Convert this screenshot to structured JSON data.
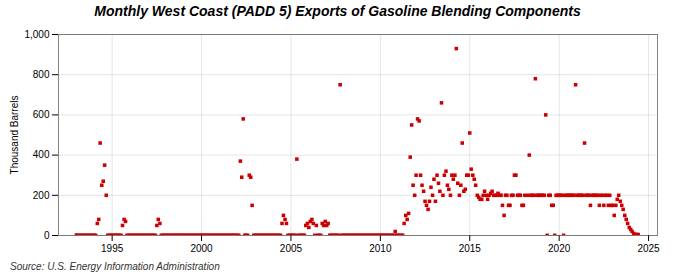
{
  "chart_data": {
    "type": "scatter",
    "title": "Monthly West Coast (PADD 5) Exports of Gasoline Blending Components",
    "ylabel": "Thousand Barrels",
    "source": "Source: U.S. Energy Information Administration",
    "color": "#CC0000",
    "marker": "square",
    "grid": true,
    "xlim": [
      1992.0,
      2025.5
    ],
    "ylim": [
      0,
      1000
    ],
    "xticks": [
      1995,
      2000,
      2005,
      2010,
      2015,
      2020,
      2025
    ],
    "yticks": [
      0,
      200,
      400,
      600,
      800,
      {
        "value": 1000,
        "label": "1,000"
      }
    ],
    "x": [
      1993.0,
      1993.08,
      1993.17,
      1993.25,
      1993.33,
      1993.42,
      1993.5,
      1993.58,
      1993.67,
      1993.75,
      1993.83,
      1993.92,
      1994.0,
      1994.08,
      1994.17,
      1994.25,
      1994.33,
      1994.42,
      1994.5,
      1994.58,
      1994.67,
      1994.75,
      1994.83,
      1994.92,
      1995.0,
      1995.08,
      1995.17,
      1995.25,
      1995.33,
      1995.42,
      1995.5,
      1995.58,
      1995.67,
      1995.75,
      1995.83,
      1995.92,
      1996.0,
      1996.08,
      1996.17,
      1996.25,
      1996.33,
      1996.42,
      1996.5,
      1996.58,
      1996.67,
      1996.75,
      1996.83,
      1996.92,
      1997.0,
      1997.08,
      1997.17,
      1997.25,
      1997.33,
      1997.42,
      1997.5,
      1997.58,
      1997.67,
      1997.75,
      1997.83,
      1997.92,
      1998.0,
      1998.08,
      1998.17,
      1998.25,
      1998.33,
      1998.42,
      1998.5,
      1998.58,
      1998.67,
      1998.75,
      1998.83,
      1998.92,
      1999.0,
      1999.08,
      1999.17,
      1999.25,
      1999.33,
      1999.42,
      1999.5,
      1999.58,
      1999.67,
      1999.75,
      1999.83,
      1999.92,
      2000.0,
      2000.08,
      2000.17,
      2000.25,
      2000.33,
      2000.42,
      2000.5,
      2000.58,
      2000.67,
      2000.75,
      2000.83,
      2000.92,
      2001.0,
      2001.08,
      2001.17,
      2001.25,
      2001.33,
      2001.42,
      2001.5,
      2001.58,
      2001.67,
      2001.75,
      2001.83,
      2001.92,
      2002.0,
      2002.08,
      2002.17,
      2002.25,
      2002.33,
      2002.42,
      2002.5,
      2002.58,
      2002.67,
      2002.75,
      2002.83,
      2002.92,
      2003.0,
      2003.08,
      2003.17,
      2003.25,
      2003.33,
      2003.42,
      2003.5,
      2003.58,
      2003.67,
      2003.75,
      2003.83,
      2003.92,
      2004.0,
      2004.08,
      2004.17,
      2004.25,
      2004.33,
      2004.42,
      2004.5,
      2004.58,
      2004.67,
      2004.75,
      2004.83,
      2004.92,
      2005.0,
      2005.08,
      2005.17,
      2005.25,
      2005.33,
      2005.42,
      2005.5,
      2005.58,
      2005.67,
      2005.75,
      2005.83,
      2005.92,
      2006.0,
      2006.08,
      2006.17,
      2006.25,
      2006.33,
      2006.42,
      2006.5,
      2006.58,
      2006.67,
      2006.75,
      2006.83,
      2006.92,
      2007.0,
      2007.08,
      2007.17,
      2007.25,
      2007.33,
      2007.42,
      2007.5,
      2007.58,
      2007.67,
      2007.75,
      2007.83,
      2007.92,
      2008.0,
      2008.08,
      2008.17,
      2008.25,
      2008.33,
      2008.42,
      2008.5,
      2008.58,
      2008.67,
      2008.75,
      2008.83,
      2008.92,
      2009.0,
      2009.08,
      2009.17,
      2009.25,
      2009.33,
      2009.42,
      2009.5,
      2009.58,
      2009.67,
      2009.75,
      2009.83,
      2009.92,
      2010.0,
      2010.08,
      2010.17,
      2010.25,
      2010.33,
      2010.42,
      2010.5,
      2010.58,
      2010.67,
      2010.75,
      2010.83,
      2010.92,
      2011.0,
      2011.08,
      2011.17,
      2011.25,
      2011.33,
      2011.42,
      2011.5,
      2011.58,
      2011.67,
      2011.75,
      2011.83,
      2011.92,
      2012.0,
      2012.08,
      2012.17,
      2012.25,
      2012.33,
      2012.42,
      2012.5,
      2012.58,
      2012.67,
      2012.75,
      2012.83,
      2012.92,
      2013.0,
      2013.08,
      2013.17,
      2013.25,
      2013.33,
      2013.42,
      2013.5,
      2013.58,
      2013.67,
      2013.75,
      2013.83,
      2013.92,
      2014.0,
      2014.08,
      2014.17,
      2014.25,
      2014.33,
      2014.42,
      2014.5,
      2014.58,
      2014.67,
      2014.75,
      2014.83,
      2014.92,
      2015.0,
      2015.08,
      2015.17,
      2015.25,
      2015.33,
      2015.42,
      2015.5,
      2015.58,
      2015.67,
      2015.75,
      2015.83,
      2015.92,
      2016.0,
      2016.08,
      2016.17,
      2016.25,
      2016.33,
      2016.42,
      2016.5,
      2016.58,
      2016.67,
      2016.75,
      2016.83,
      2016.92,
      2017.0,
      2017.08,
      2017.17,
      2017.25,
      2017.33,
      2017.42,
      2017.5,
      2017.58,
      2017.67,
      2017.75,
      2017.83,
      2017.92,
      2018.0,
      2018.08,
      2018.25,
      2018.33,
      2018.42,
      2018.5,
      2018.58,
      2018.67,
      2018.75,
      2018.83,
      2018.92,
      2019.0,
      2019.08,
      2019.17,
      2019.25,
      2019.33,
      2019.42,
      2019.5,
      2019.58,
      2019.67,
      2019.75,
      2019.83,
      2019.92,
      2020.0,
      2020.08,
      2020.17,
      2020.25,
      2020.33,
      2020.42,
      2020.5,
      2020.58,
      2020.67,
      2020.75,
      2020.83,
      2020.92,
      2021.0,
      2021.08,
      2021.17,
      2021.25,
      2021.33,
      2021.42,
      2021.5,
      2021.58,
      2021.67,
      2021.75,
      2021.83,
      2021.92,
      2022.0,
      2022.08,
      2022.17,
      2022.25,
      2022.33,
      2022.42,
      2022.5,
      2022.58,
      2022.67,
      2022.75,
      2022.83,
      2022.92,
      2023.0,
      2023.08,
      2023.17,
      2023.25,
      2023.33,
      2023.42,
      2023.5,
      2023.58,
      2023.67,
      2023.75,
      2023.83,
      2023.92,
      2024.0,
      2024.08,
      2024.17,
      2024.25,
      2024.33,
      2024.42
    ],
    "values": [
      2,
      1,
      1,
      1,
      1,
      1,
      1,
      1,
      1,
      1,
      1,
      1,
      1,
      1,
      60,
      80,
      460,
      250,
      270,
      350,
      200,
      1,
      1,
      1,
      1,
      1,
      1,
      1,
      1,
      1,
      1,
      50,
      80,
      70,
      1,
      1,
      1,
      1,
      1,
      1,
      1,
      1,
      1,
      1,
      1,
      1,
      1,
      1,
      1,
      1,
      1,
      1,
      1,
      1,
      50,
      80,
      60,
      1,
      1,
      1,
      1,
      1,
      1,
      1,
      1,
      1,
      1,
      1,
      1,
      1,
      1,
      1,
      1,
      1,
      1,
      1,
      1,
      1,
      1,
      1,
      1,
      1,
      1,
      1,
      1,
      1,
      1,
      1,
      1,
      1,
      1,
      1,
      1,
      1,
      1,
      1,
      1,
      1,
      1,
      1,
      1,
      1,
      1,
      1,
      1,
      1,
      1,
      1,
      1,
      1,
      370,
      290,
      580,
      1,
      1,
      1,
      300,
      290,
      150,
      1,
      1,
      1,
      1,
      1,
      1,
      1,
      1,
      1,
      1,
      1,
      1,
      1,
      1,
      1,
      1,
      1,
      1,
      1,
      60,
      100,
      80,
      60,
      1,
      1,
      1,
      1,
      1,
      1,
      380,
      1,
      1,
      1,
      1,
      1,
      50,
      60,
      40,
      70,
      80,
      60,
      1,
      50,
      1,
      1,
      1,
      60,
      50,
      70,
      50,
      60,
      1,
      1,
      1,
      1,
      1,
      1,
      1,
      750,
      1,
      1,
      1,
      1,
      1,
      1,
      1,
      1,
      1,
      1,
      1,
      1,
      1,
      1,
      1,
      1,
      1,
      1,
      1,
      1,
      1,
      1,
      1,
      1,
      1,
      1,
      1,
      1,
      1,
      1,
      1,
      1,
      1,
      1,
      1,
      1,
      20,
      1,
      1,
      1,
      1,
      1,
      60,
      100,
      80,
      110,
      390,
      550,
      250,
      200,
      300,
      580,
      570,
      300,
      250,
      220,
      170,
      150,
      130,
      170,
      240,
      200,
      280,
      170,
      300,
      260,
      220,
      660,
      200,
      300,
      320,
      250,
      230,
      200,
      300,
      280,
      300,
      930,
      260,
      200,
      250,
      460,
      220,
      230,
      300,
      300,
      510,
      330,
      300,
      280,
      250,
      200,
      190,
      180,
      180,
      200,
      220,
      200,
      180,
      200,
      210,
      220,
      200,
      200,
      200,
      210,
      200,
      200,
      150,
      100,
      200,
      200,
      150,
      150,
      200,
      200,
      300,
      300,
      200,
      200,
      200,
      150,
      150,
      200,
      200,
      400,
      200,
      200,
      200,
      780,
      200,
      200,
      200,
      200,
      200,
      200,
      600,
      1,
      200,
      200,
      150,
      150,
      1,
      200,
      200,
      200,
      200,
      200,
      1,
      200,
      200,
      200,
      200,
      200,
      200,
      200,
      750,
      200,
      200,
      200,
      200,
      200,
      460,
      200,
      200,
      200,
      150,
      200,
      200,
      200,
      200,
      200,
      150,
      200,
      200,
      150,
      200,
      200,
      150,
      200,
      150,
      150,
      100,
      150,
      180,
      200,
      170,
      150,
      130,
      100,
      80,
      60,
      40,
      30,
      20,
      10,
      5,
      5,
      5
    ]
  }
}
